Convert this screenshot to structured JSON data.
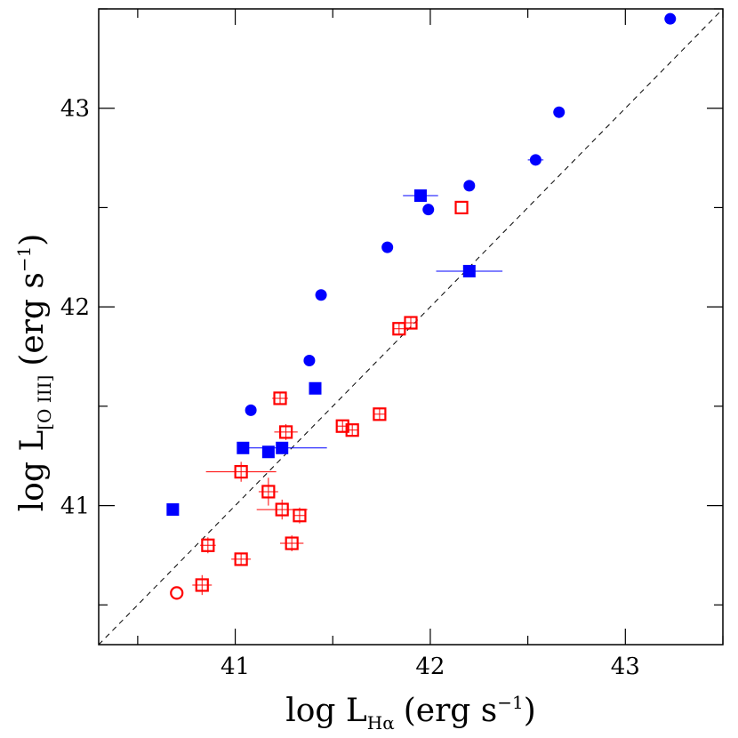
{
  "chart_data": {
    "type": "scatter",
    "xlabel": {
      "prefix": "log L",
      "subscript": "Hα",
      "units": "(erg s",
      "sup": "−1",
      "close": ")"
    },
    "ylabel": {
      "prefix": "log L",
      "subscript": "[O III]",
      "units": "(erg s",
      "sup": "−1",
      "close": ")"
    },
    "xlim": [
      40.3,
      43.5
    ],
    "ylim": [
      40.3,
      43.5
    ],
    "xticks": [
      41,
      42,
      43
    ],
    "yticks": [
      41,
      42,
      43
    ],
    "xtick_labels": [
      "41",
      "42",
      "43"
    ],
    "ytick_labels": [
      "41",
      "42",
      "43"
    ],
    "minor_step": 0.5,
    "reference_line": {
      "style": "dashed",
      "from": [
        40.3,
        40.3
      ],
      "to": [
        43.5,
        43.5
      ]
    },
    "series": [
      {
        "marker": "filled-circle",
        "color": "#0000ff",
        "points": [
          {
            "x": 43.23,
            "y": 43.45,
            "xerr": 0,
            "yerr": 0
          },
          {
            "x": 42.66,
            "y": 42.98,
            "xerr": 0,
            "yerr": 0
          },
          {
            "x": 42.54,
            "y": 42.74,
            "xerr": 0.04,
            "yerr": 0
          },
          {
            "x": 42.2,
            "y": 42.61,
            "xerr": 0,
            "yerr": 0
          },
          {
            "x": 41.99,
            "y": 42.49,
            "xerr": 0,
            "yerr": 0
          },
          {
            "x": 41.78,
            "y": 42.3,
            "xerr": 0,
            "yerr": 0
          },
          {
            "x": 41.44,
            "y": 42.06,
            "xerr": 0,
            "yerr": 0
          },
          {
            "x": 41.38,
            "y": 41.73,
            "xerr": 0,
            "yerr": 0
          },
          {
            "x": 41.08,
            "y": 41.48,
            "xerr": 0,
            "yerr": 0
          }
        ]
      },
      {
        "marker": "filled-square",
        "color": "#0000ff",
        "points": [
          {
            "x": 41.95,
            "y": 42.56,
            "xerr": 0.09,
            "yerr": 0
          },
          {
            "x": 42.2,
            "y": 42.18,
            "xerr": 0.17,
            "yerr": 0
          },
          {
            "x": 41.41,
            "y": 41.59,
            "xerr": 0,
            "yerr": 0
          },
          {
            "x": 41.04,
            "y": 41.29,
            "xerr": 0,
            "yerr": 0
          },
          {
            "x": 41.24,
            "y": 41.29,
            "xerr": 0.23,
            "yerr": 0
          },
          {
            "x": 41.17,
            "y": 41.27,
            "xerr": 0,
            "yerr": 0
          },
          {
            "x": 40.68,
            "y": 40.98,
            "xerr": 0,
            "yerr": 0
          }
        ]
      },
      {
        "marker": "open-square",
        "color": "#ff0000",
        "points": [
          {
            "x": 42.16,
            "y": 42.5,
            "xerr": 0,
            "yerr": 0
          },
          {
            "x": 41.9,
            "y": 41.92,
            "xerr": 0.03,
            "yerr": 0.03
          },
          {
            "x": 41.84,
            "y": 41.89,
            "xerr": 0.03,
            "yerr": 0.03
          },
          {
            "x": 41.23,
            "y": 41.54,
            "xerr": 0.04,
            "yerr": 0.03
          },
          {
            "x": 41.74,
            "y": 41.46,
            "xerr": 0.03,
            "yerr": 0.03
          },
          {
            "x": 41.55,
            "y": 41.4,
            "xerr": 0.03,
            "yerr": 0.03
          },
          {
            "x": 41.6,
            "y": 41.38,
            "xerr": 0.03,
            "yerr": 0.03
          },
          {
            "x": 41.26,
            "y": 41.37,
            "xerr": 0.06,
            "yerr": 0.04
          },
          {
            "x": 41.03,
            "y": 41.17,
            "xerr": 0.18,
            "yerr": 0.05
          },
          {
            "x": 41.17,
            "y": 41.07,
            "xerr": 0.05,
            "yerr": 0.07
          },
          {
            "x": 41.24,
            "y": 40.98,
            "xerr": 0.13,
            "yerr": 0.05
          },
          {
            "x": 41.33,
            "y": 40.95,
            "xerr": 0.03,
            "yerr": 0.04
          },
          {
            "x": 40.86,
            "y": 40.8,
            "xerr": 0.04,
            "yerr": 0.04
          },
          {
            "x": 41.29,
            "y": 40.81,
            "xerr": 0.06,
            "yerr": 0.04
          },
          {
            "x": 41.03,
            "y": 40.73,
            "xerr": 0.05,
            "yerr": 0.03
          },
          {
            "x": 40.83,
            "y": 40.6,
            "xerr": 0.05,
            "yerr": 0.05
          }
        ]
      },
      {
        "marker": "open-circle",
        "color": "#ff0000",
        "points": [
          {
            "x": 40.7,
            "y": 40.56,
            "xerr": 0,
            "yerr": 0
          }
        ]
      }
    ]
  }
}
